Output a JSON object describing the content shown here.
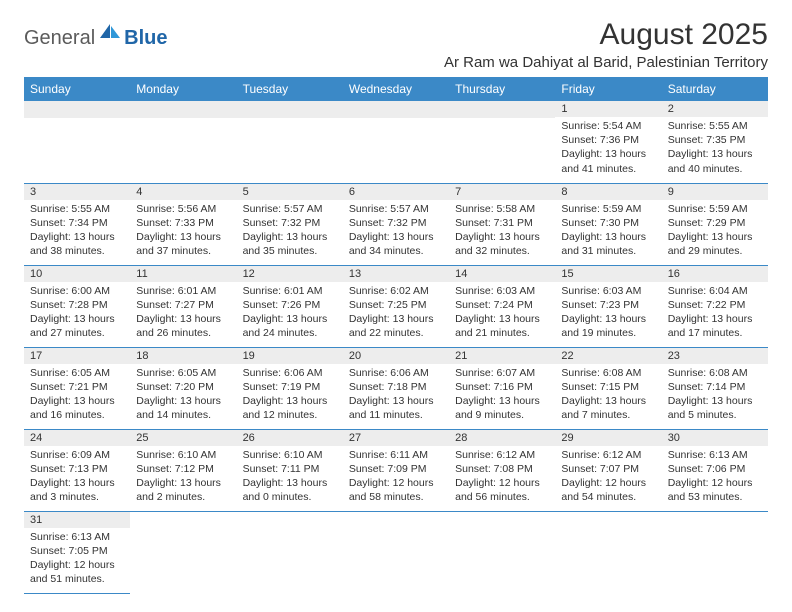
{
  "logo": {
    "part1": "General",
    "part2": "Blue"
  },
  "header": {
    "month_title": "August 2025",
    "location": "Ar Ram wa Dahiyat al Barid, Palestinian Territory"
  },
  "colors": {
    "header_bg": "#3b89c7",
    "header_text": "#ffffff",
    "daynum_bg": "#ededed",
    "cell_border": "#3b89c7",
    "logo_gray": "#5b5b5b",
    "logo_blue": "#2066a8"
  },
  "weekdays": [
    "Sunday",
    "Monday",
    "Tuesday",
    "Wednesday",
    "Thursday",
    "Friday",
    "Saturday"
  ],
  "weeks": [
    [
      null,
      null,
      null,
      null,
      null,
      {
        "day": "1",
        "sunrise": "Sunrise: 5:54 AM",
        "sunset": "Sunset: 7:36 PM",
        "daylight": "Daylight: 13 hours and 41 minutes."
      },
      {
        "day": "2",
        "sunrise": "Sunrise: 5:55 AM",
        "sunset": "Sunset: 7:35 PM",
        "daylight": "Daylight: 13 hours and 40 minutes."
      }
    ],
    [
      {
        "day": "3",
        "sunrise": "Sunrise: 5:55 AM",
        "sunset": "Sunset: 7:34 PM",
        "daylight": "Daylight: 13 hours and 38 minutes."
      },
      {
        "day": "4",
        "sunrise": "Sunrise: 5:56 AM",
        "sunset": "Sunset: 7:33 PM",
        "daylight": "Daylight: 13 hours and 37 minutes."
      },
      {
        "day": "5",
        "sunrise": "Sunrise: 5:57 AM",
        "sunset": "Sunset: 7:32 PM",
        "daylight": "Daylight: 13 hours and 35 minutes."
      },
      {
        "day": "6",
        "sunrise": "Sunrise: 5:57 AM",
        "sunset": "Sunset: 7:32 PM",
        "daylight": "Daylight: 13 hours and 34 minutes."
      },
      {
        "day": "7",
        "sunrise": "Sunrise: 5:58 AM",
        "sunset": "Sunset: 7:31 PM",
        "daylight": "Daylight: 13 hours and 32 minutes."
      },
      {
        "day": "8",
        "sunrise": "Sunrise: 5:59 AM",
        "sunset": "Sunset: 7:30 PM",
        "daylight": "Daylight: 13 hours and 31 minutes."
      },
      {
        "day": "9",
        "sunrise": "Sunrise: 5:59 AM",
        "sunset": "Sunset: 7:29 PM",
        "daylight": "Daylight: 13 hours and 29 minutes."
      }
    ],
    [
      {
        "day": "10",
        "sunrise": "Sunrise: 6:00 AM",
        "sunset": "Sunset: 7:28 PM",
        "daylight": "Daylight: 13 hours and 27 minutes."
      },
      {
        "day": "11",
        "sunrise": "Sunrise: 6:01 AM",
        "sunset": "Sunset: 7:27 PM",
        "daylight": "Daylight: 13 hours and 26 minutes."
      },
      {
        "day": "12",
        "sunrise": "Sunrise: 6:01 AM",
        "sunset": "Sunset: 7:26 PM",
        "daylight": "Daylight: 13 hours and 24 minutes."
      },
      {
        "day": "13",
        "sunrise": "Sunrise: 6:02 AM",
        "sunset": "Sunset: 7:25 PM",
        "daylight": "Daylight: 13 hours and 22 minutes."
      },
      {
        "day": "14",
        "sunrise": "Sunrise: 6:03 AM",
        "sunset": "Sunset: 7:24 PM",
        "daylight": "Daylight: 13 hours and 21 minutes."
      },
      {
        "day": "15",
        "sunrise": "Sunrise: 6:03 AM",
        "sunset": "Sunset: 7:23 PM",
        "daylight": "Daylight: 13 hours and 19 minutes."
      },
      {
        "day": "16",
        "sunrise": "Sunrise: 6:04 AM",
        "sunset": "Sunset: 7:22 PM",
        "daylight": "Daylight: 13 hours and 17 minutes."
      }
    ],
    [
      {
        "day": "17",
        "sunrise": "Sunrise: 6:05 AM",
        "sunset": "Sunset: 7:21 PM",
        "daylight": "Daylight: 13 hours and 16 minutes."
      },
      {
        "day": "18",
        "sunrise": "Sunrise: 6:05 AM",
        "sunset": "Sunset: 7:20 PM",
        "daylight": "Daylight: 13 hours and 14 minutes."
      },
      {
        "day": "19",
        "sunrise": "Sunrise: 6:06 AM",
        "sunset": "Sunset: 7:19 PM",
        "daylight": "Daylight: 13 hours and 12 minutes."
      },
      {
        "day": "20",
        "sunrise": "Sunrise: 6:06 AM",
        "sunset": "Sunset: 7:18 PM",
        "daylight": "Daylight: 13 hours and 11 minutes."
      },
      {
        "day": "21",
        "sunrise": "Sunrise: 6:07 AM",
        "sunset": "Sunset: 7:16 PM",
        "daylight": "Daylight: 13 hours and 9 minutes."
      },
      {
        "day": "22",
        "sunrise": "Sunrise: 6:08 AM",
        "sunset": "Sunset: 7:15 PM",
        "daylight": "Daylight: 13 hours and 7 minutes."
      },
      {
        "day": "23",
        "sunrise": "Sunrise: 6:08 AM",
        "sunset": "Sunset: 7:14 PM",
        "daylight": "Daylight: 13 hours and 5 minutes."
      }
    ],
    [
      {
        "day": "24",
        "sunrise": "Sunrise: 6:09 AM",
        "sunset": "Sunset: 7:13 PM",
        "daylight": "Daylight: 13 hours and 3 minutes."
      },
      {
        "day": "25",
        "sunrise": "Sunrise: 6:10 AM",
        "sunset": "Sunset: 7:12 PM",
        "daylight": "Daylight: 13 hours and 2 minutes."
      },
      {
        "day": "26",
        "sunrise": "Sunrise: 6:10 AM",
        "sunset": "Sunset: 7:11 PM",
        "daylight": "Daylight: 13 hours and 0 minutes."
      },
      {
        "day": "27",
        "sunrise": "Sunrise: 6:11 AM",
        "sunset": "Sunset: 7:09 PM",
        "daylight": "Daylight: 12 hours and 58 minutes."
      },
      {
        "day": "28",
        "sunrise": "Sunrise: 6:12 AM",
        "sunset": "Sunset: 7:08 PM",
        "daylight": "Daylight: 12 hours and 56 minutes."
      },
      {
        "day": "29",
        "sunrise": "Sunrise: 6:12 AM",
        "sunset": "Sunset: 7:07 PM",
        "daylight": "Daylight: 12 hours and 54 minutes."
      },
      {
        "day": "30",
        "sunrise": "Sunrise: 6:13 AM",
        "sunset": "Sunset: 7:06 PM",
        "daylight": "Daylight: 12 hours and 53 minutes."
      }
    ],
    [
      {
        "day": "31",
        "sunrise": "Sunrise: 6:13 AM",
        "sunset": "Sunset: 7:05 PM",
        "daylight": "Daylight: 12 hours and 51 minutes."
      },
      null,
      null,
      null,
      null,
      null,
      null
    ]
  ]
}
